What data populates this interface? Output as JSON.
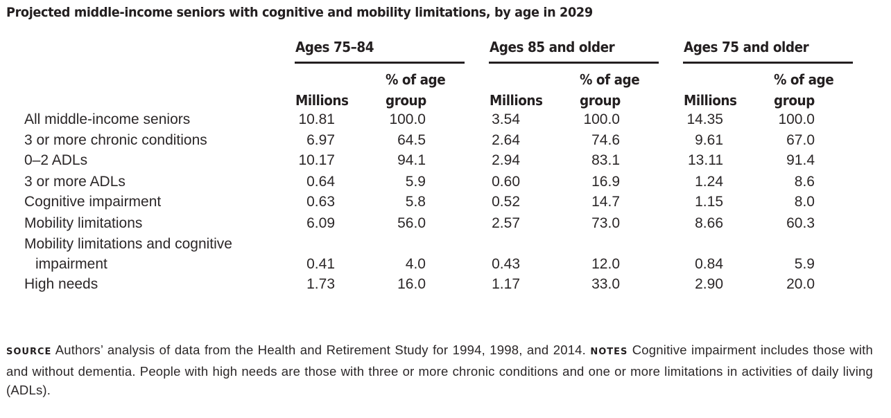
{
  "title": "Projected middle-income seniors with cognitive and mobility limitations, by age in 2029",
  "groups": [
    {
      "label": "Ages 75–84",
      "millions_header": "Millions",
      "pct_header_line1": "% of age",
      "pct_header_line2": "group"
    },
    {
      "label": "Ages 85 and older",
      "millions_header": "Millions",
      "pct_header_line1": "% of age",
      "pct_header_line2": "group"
    },
    {
      "label": "Ages 75 and older",
      "millions_header": "Millions",
      "pct_header_line1": "% of age",
      "pct_header_line2": "group"
    }
  ],
  "rows": [
    {
      "label": "All middle-income seniors",
      "values": [
        "10.81",
        "100.0",
        "3.54",
        "100.0",
        "14.35",
        "100.0"
      ]
    },
    {
      "label": "3 or more chronic conditions",
      "values": [
        "6.97",
        "64.5",
        "2.64",
        "74.6",
        "9.61",
        "67.0"
      ]
    },
    {
      "label": "0–2 ADLs",
      "values": [
        "10.17",
        "94.1",
        "2.94",
        "83.1",
        "13.11",
        "91.4"
      ]
    },
    {
      "label": "3 or more ADLs",
      "values": [
        "0.64",
        "5.9",
        "0.60",
        "16.9",
        "1.24",
        "8.6"
      ]
    },
    {
      "label": "Cognitive impairment",
      "values": [
        "0.63",
        "5.8",
        "0.52",
        "14.7",
        "1.15",
        "8.0"
      ]
    },
    {
      "label": "Mobility limitations",
      "values": [
        "6.09",
        "56.0",
        "2.57",
        "73.0",
        "8.66",
        "60.3"
      ]
    },
    {
      "label": "Mobility limitations and cognitive",
      "label_line2": "impairment",
      "values": [
        "0.41",
        "4.0",
        "0.43",
        "12.0",
        "0.84",
        "5.9"
      ]
    },
    {
      "label": "High needs",
      "values": [
        "1.73",
        "16.0",
        "1.17",
        "33.0",
        "2.90",
        "20.0"
      ]
    }
  ],
  "footer": {
    "source_label": "SOURCE",
    "source_text": " Authors’ analysis of data from the Health and Retirement Study for 1994, 1998, and 2014. ",
    "notes_label": "NOTES",
    "notes_text": " Cognitive impairment includes those with and without dementia. People with high needs are those with three or more chronic conditions and one or more limitations in activities of daily living (ADLs)."
  }
}
